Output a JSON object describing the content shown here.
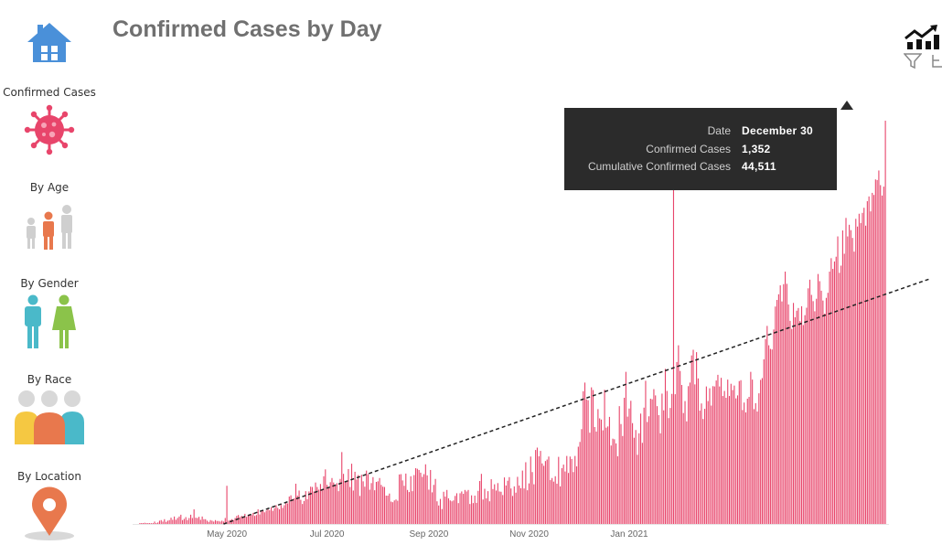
{
  "title": "Confirmed Cases by Day",
  "nav": [
    {
      "label": "",
      "icon": "home-icon"
    },
    {
      "label": "Confirmed Cases",
      "icon": "virus-icon"
    },
    {
      "label": "By Age",
      "icon": "age-group-icon"
    },
    {
      "label": "By Gender",
      "icon": "gender-icon"
    },
    {
      "label": "By Race",
      "icon": "race-group-icon"
    },
    {
      "label": "By Location",
      "icon": "location-pin-icon"
    }
  ],
  "colors": {
    "bar": "#e8456b",
    "trend": "#222222",
    "title": "#707070",
    "tooltip_bg": "#2b2b2b",
    "home": "#4a90d9",
    "virus": "#e8456b",
    "age": "#e8784d",
    "gender_male": "#4ab9c9",
    "gender_female": "#8bc34a",
    "race": [
      "#f5c842",
      "#e8784d",
      "#4ab9c9"
    ],
    "pin": "#e8784d"
  },
  "tooltip": {
    "rows": [
      {
        "key": "Date",
        "value": "December 30"
      },
      {
        "key": "Confirmed Cases",
        "value": "1,352"
      },
      {
        "key": "Cumulative Confirmed Cases",
        "value": "44,511"
      }
    ]
  },
  "chart_data": {
    "type": "bar",
    "title": "Confirmed Cases by Day",
    "xlabel": "",
    "ylabel": "",
    "x_start": "2020-03-09",
    "x_end": "2021-01-21",
    "x_ticks": [
      "May 2020",
      "Jul 2020",
      "Sep 2020",
      "Nov 2020",
      "Jan 2021"
    ],
    "ylim": [
      0,
      1450
    ],
    "grid": false,
    "trendline": {
      "style": "dashed",
      "from": [
        51,
        0
      ],
      "to": [
        319,
        512
      ]
    },
    "highlighted": {
      "date": "December 30",
      "value": 1352
    },
    "values": [
      3,
      3,
      3,
      4,
      3,
      3,
      3,
      2,
      3,
      8,
      3,
      5,
      11,
      13,
      8,
      16,
      7,
      11,
      13,
      21,
      14,
      25,
      14,
      20,
      25,
      31,
      13,
      17,
      23,
      13,
      20,
      31,
      20,
      49,
      21,
      20,
      24,
      14,
      25,
      16,
      16,
      11,
      7,
      13,
      11,
      8,
      13,
      10,
      10,
      8,
      11,
      8,
      20,
      128,
      11,
      13,
      16,
      13,
      20,
      27,
      30,
      23,
      27,
      24,
      34,
      24,
      31,
      32,
      30,
      37,
      27,
      30,
      49,
      32,
      43,
      46,
      39,
      45,
      49,
      46,
      56,
      44,
      53,
      63,
      54,
      49,
      64,
      54,
      63,
      71,
      69,
      92,
      96,
      82,
      86,
      135,
      95,
      112,
      81,
      67,
      77,
      110,
      83,
      109,
      125,
      124,
      109,
      139,
      124,
      115,
      134,
      116,
      160,
      183,
      131,
      123,
      140,
      154,
      139,
      131,
      137,
      110,
      151,
      241,
      168,
      144,
      141,
      184,
      124,
      202,
      112,
      175,
      149,
      164,
      94,
      165,
      143,
      125,
      179,
      167,
      115,
      137,
      157,
      113,
      141,
      143,
      154,
      131,
      125,
      124,
      95,
      95,
      102,
      75,
      73,
      79,
      82,
      78,
      166,
      167,
      146,
      128,
      169,
      114,
      107,
      160,
      110,
      164,
      187,
      185,
      181,
      172,
      158,
      167,
      200,
      163,
      115,
      181,
      106,
      131,
      151,
      76,
      62,
      84,
      50,
      108,
      92,
      114,
      86,
      79,
      76,
      79,
      94,
      103,
      70,
      103,
      109,
      101,
      114,
      109,
      114,
      67,
      96,
      70,
      95,
      71,
      111,
      144,
      168,
      82,
      118,
      86,
      110,
      76,
      150,
      117,
      133,
      112,
      137,
      109,
      108,
      97,
      156,
      129,
      145,
      157,
      119,
      94,
      126,
      105,
      158,
      129,
      120,
      179,
      119,
      207,
      113,
      136,
      226,
      174,
      133,
      248,
      256,
      227,
      245,
      203,
      195,
      211,
      216,
      226,
      147,
      154,
      142,
      160,
      135,
      225,
      126,
      187,
      199,
      176,
      228,
      171,
      226,
      218,
      174,
      228,
      193,
      259,
      275,
      318,
      445,
      474,
      418,
      415,
      306,
      458,
      449,
      325,
      310,
      385,
      354,
      350,
      314,
      450,
      323,
      327,
      359,
      263,
      286,
      284,
      270,
      227,
      395,
      335,
      295,
      423,
      510,
      360,
      387,
      413,
      338,
      289,
      315,
      232,
      304,
      370,
      272,
      390,
      480,
      342,
      361,
      420,
      418,
      452,
      431,
      395,
      365,
      304,
      437,
      381,
      520,
      446,
      355,
      389,
      436,
      1131,
      435,
      543,
      599,
      513,
      466,
      372,
      412,
      344,
      462,
      474,
      565,
      584,
      468,
      576,
      488,
      380,
      404,
      352,
      386,
      461,
      412,
      455,
      397,
      462,
      461,
      481,
      500,
      461,
      490,
      429,
      446,
      423,
      484,
      429,
      470,
      449,
      464,
      421,
      431,
      479,
      482,
      382,
      407,
      374,
      420,
      426,
      510,
      484,
      385,
      405,
      377,
      438,
      483,
      489,
      552,
      620,
      664,
      599,
      587,
      585,
      652,
      729,
      751,
      770,
      800,
      746,
      804,
      846,
      805,
      736,
      681,
      654,
      741,
      693,
      715,
      724,
      680,
      730,
      667,
      700,
      725,
      790,
      819,
      768,
      747,
      713,
      755,
      838,
      814,
      782,
      749,
      705,
      758,
      775,
      846,
      891,
      855,
      880,
      896,
      964,
      842,
      866,
      984,
      906,
      1026,
      964,
      1003,
      985,
      959,
      913,
      1023,
      997,
      1040,
      1009,
      1043,
      1060,
      1000,
      1082,
      1098,
      1048,
      1110,
      1103,
      1155,
      1153,
      1185,
      1136,
      1101,
      1131,
      1352
    ]
  }
}
